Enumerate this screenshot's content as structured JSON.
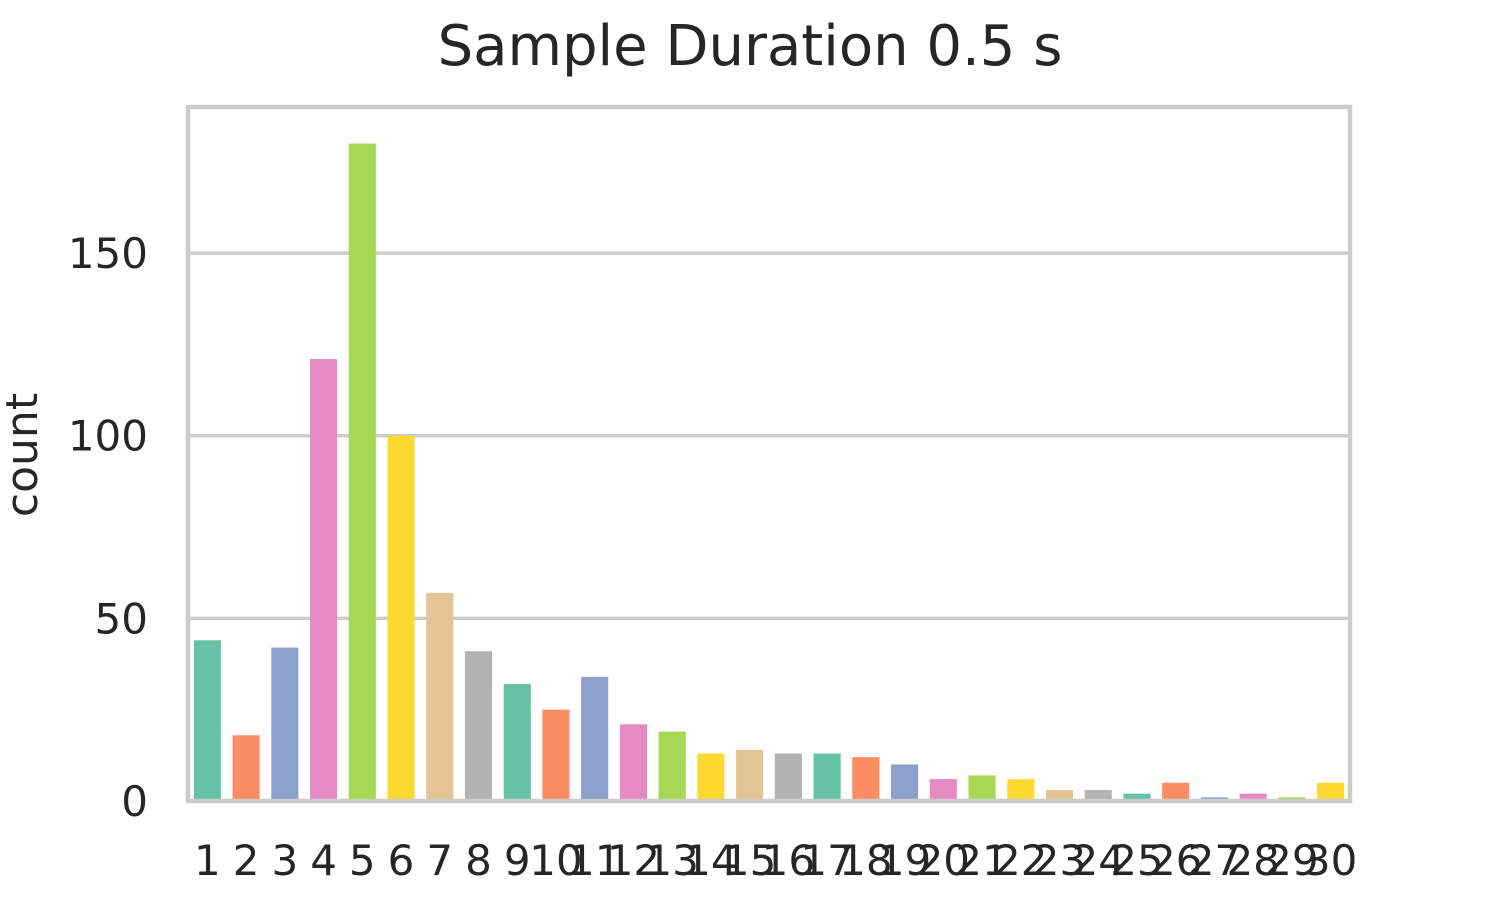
{
  "chart_data": {
    "type": "bar",
    "title": "Sample Duration 0.5 s",
    "xlabel": "",
    "ylabel": "count",
    "categories": [
      "1",
      "2",
      "3",
      "4",
      "5",
      "6",
      "7",
      "8",
      "9",
      "10",
      "11",
      "12",
      "13",
      "14",
      "15",
      "16",
      "17",
      "18",
      "19",
      "20",
      "21",
      "22",
      "23",
      "24",
      "25",
      "26",
      "27",
      "28",
      "29",
      "30"
    ],
    "values": [
      44,
      18,
      42,
      121,
      180,
      100,
      57,
      41,
      32,
      25,
      34,
      21,
      19,
      13,
      14,
      13,
      13,
      12,
      10,
      6,
      7,
      6,
      3,
      3,
      2,
      5,
      1,
      2,
      1,
      5
    ],
    "ylim": [
      0,
      190
    ],
    "yticks": [
      0,
      50,
      100,
      150
    ],
    "grid": true,
    "colors": [
      "#66c2a5",
      "#fc8d62",
      "#8da0cb",
      "#e78ac3",
      "#a6d854",
      "#ffd92f",
      "#e5c494",
      "#b3b3b3"
    ]
  }
}
